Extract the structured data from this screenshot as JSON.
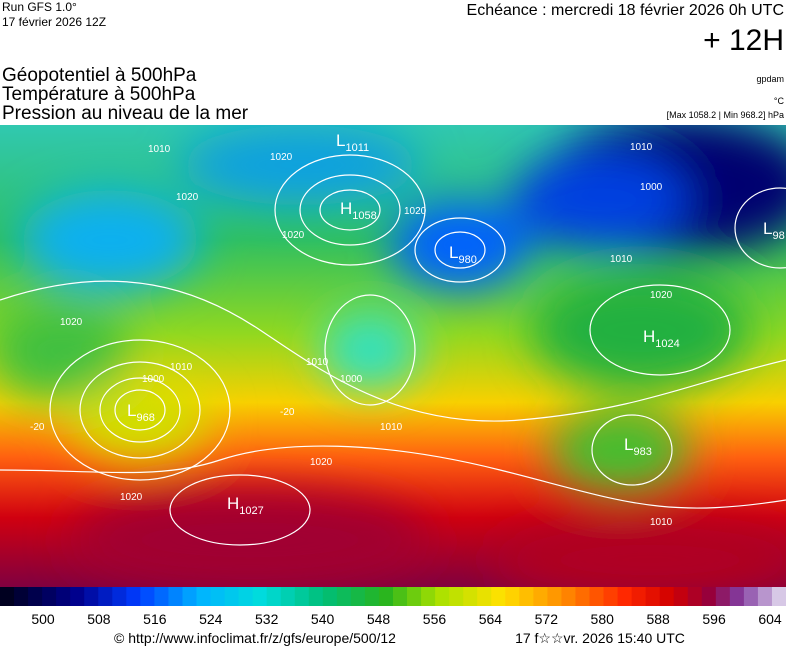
{
  "header": {
    "run": "Run GFS 1.0°",
    "run_date": "17 février 2026 12Z",
    "valid": "Echéance : mercredi 18 février 2026 0h UTC",
    "lead": "+ 12H"
  },
  "titles": [
    "Géopotentiel à 500hPa",
    "Température à 500hPa",
    "Pression au niveau de la mer"
  ],
  "units": {
    "geopotential": "gpdam",
    "temperature": "°C",
    "pressure_range": "[Max 1058.2 | Min 968.2] hPa"
  },
  "pressure_centers": [
    {
      "kind": "L",
      "value": "1011"
    },
    {
      "kind": "H",
      "value": "1058"
    },
    {
      "kind": "L",
      "value": "980"
    },
    {
      "kind": "H",
      "value": "1024"
    },
    {
      "kind": "L",
      "value": "968"
    },
    {
      "kind": "H",
      "value": "1027"
    },
    {
      "kind": "L",
      "value": "983"
    },
    {
      "kind": "L",
      "value": "98"
    }
  ],
  "isobar_labels": [
    "1020",
    "1020",
    "1020",
    "1020",
    "1010",
    "1010",
    "1000",
    "1010",
    "1000",
    "1010",
    "1020",
    "1020",
    "1020",
    "1010",
    "1010",
    "1000",
    "-20",
    "-20",
    "1020",
    "1010"
  ],
  "colorbar": {
    "labels": [
      "500",
      "508",
      "516",
      "524",
      "532",
      "540",
      "548",
      "556",
      "564",
      "572",
      "580",
      "588",
      "596",
      "604"
    ]
  },
  "footer": {
    "source": "© http://www.infoclimat.fr/z/gfs/europe/500/12",
    "generated": "17 f☆☆vr. 2026 15:40 UTC"
  }
}
